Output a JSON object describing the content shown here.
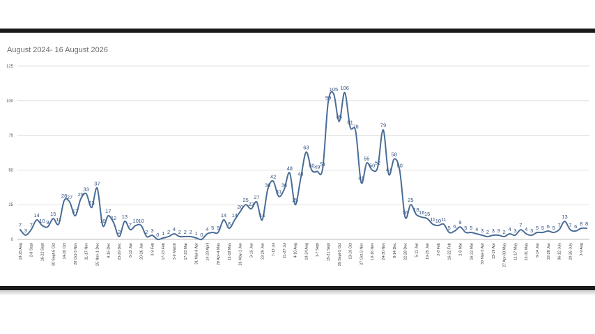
{
  "chart_data": {
    "type": "line",
    "title": "August 2024- 16 August 2026",
    "xlabel": "",
    "ylabel": "",
    "ylim": [
      0,
      125
    ],
    "yticks": [
      0,
      25,
      50,
      75,
      100,
      125
    ],
    "grid": true,
    "line_color": "#4a6d96",
    "values": [
      7,
      3,
      7,
      14,
      10,
      9,
      15,
      11,
      28,
      27,
      17,
      29,
      33,
      23,
      37,
      10,
      17,
      12,
      2,
      13,
      7,
      10,
      10,
      2,
      3,
      0,
      1,
      2,
      4,
      2,
      2,
      2,
      1,
      0,
      4,
      5,
      5,
      14,
      8,
      14,
      20,
      25,
      22,
      27,
      14,
      36,
      42,
      31,
      36,
      48,
      25,
      44,
      63,
      50,
      49,
      51,
      99,
      105,
      85,
      106,
      81,
      78,
      41,
      55,
      50,
      52,
      79,
      47,
      58,
      50,
      16,
      25,
      18,
      16,
      15,
      11,
      10,
      11,
      5,
      6,
      9,
      5,
      5,
      4,
      3,
      2,
      3,
      3,
      2,
      4,
      3,
      7,
      4,
      3,
      5,
      5,
      6,
      5,
      7,
      13,
      7,
      6,
      8,
      8
    ],
    "x_tick_labels": [
      "19-25 Aug",
      "2-8 Sept",
      "16-22 Sept",
      "30 Sept-6 Oct",
      "14-20 Oct",
      "28 Oct-3 Nov",
      "11-17 Nov",
      "25 Nov-1 Dec",
      "9-15 Dec",
      "23-29 Dec",
      "6-12 Jan",
      "20-26 Jan",
      "3-9 Feb",
      "17-23 Feb",
      "3-9 March",
      "17-23 Mar",
      "31 Mar-6 Apr",
      "14-20 April",
      "28 Apr-4 May",
      "12-18 May",
      "26 May-1 Jun",
      "9-15 Jun",
      "23-29 Jun",
      "7-13 Jul",
      "21-27 Jul",
      "4-10 Aug",
      "18-24 Aug",
      "1-7 Sept",
      "15-21 Sept",
      "29 Sept-5 Oct",
      "13-19 Oct",
      "27 Oct-2 Nov",
      "10-16 Nov",
      "24-30 Nov",
      "8-14 Dec",
      "22-28 Dec",
      "5-11 Jan",
      "19-25 Jan",
      "2-8 Feb",
      "16-22 Feb",
      "2-8 Mar",
      "16-22 Mar",
      "30 Mar-5 Apr",
      "13-19 Apr",
      "27 Apr-03 May",
      "11-17 May",
      "25-31 May",
      "8-14 Jun",
      "22-28 Jun",
      "06-12 July",
      "20-26 July",
      "3-9 Aug"
    ]
  }
}
